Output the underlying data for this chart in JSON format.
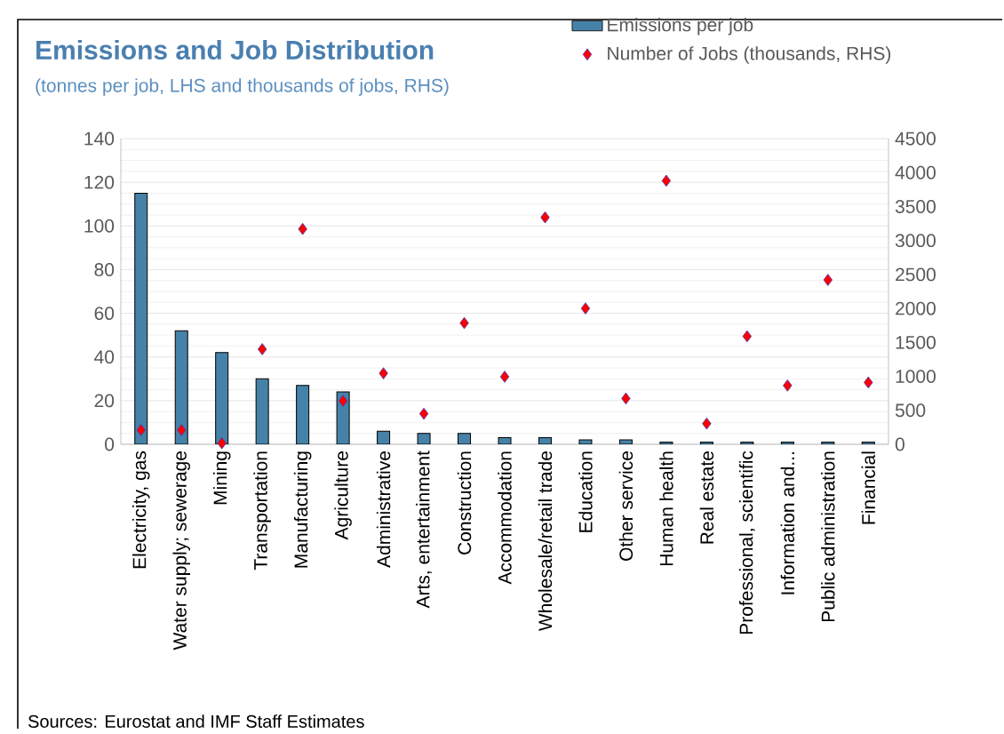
{
  "chart_data": {
    "type": "bar",
    "title": "Emissions and Job Distribution",
    "subtitle": "(tonnes per job, LHS and thousands of jobs, RHS)",
    "categories": [
      "Electricity, gas",
      "Water supply; sewerage",
      "Mining",
      "Transportation",
      "Manufacturing",
      "Agriculture",
      "Administrative",
      "Arts, entertainment",
      "Construction",
      "Accommodation",
      "Wholesale/retail trade",
      "Education",
      "Other service",
      "Human health",
      "Real estate",
      "Professional, scientific",
      "Information and...",
      "Public administration",
      "Financial"
    ],
    "series": [
      {
        "name": "Emissions per job",
        "color": "#4682a8",
        "values": [
          115,
          52,
          42,
          30,
          27,
          24,
          6,
          5,
          5,
          3,
          3,
          2,
          2,
          1,
          1,
          1,
          1,
          1,
          1
        ]
      },
      {
        "name": "Number of Jobs (thousands, RHS)",
        "type": "scatter",
        "axis": "y2",
        "marker": "diamond",
        "color": "#ff0000",
        "values": [
          210,
          210,
          16,
          1400,
          3170,
          640,
          1045,
          450,
          1785,
          995,
          3340,
          2000,
          675,
          3880,
          305,
          1590,
          865,
          2420,
          910
        ]
      }
    ],
    "ylim": [
      0,
      140
    ],
    "yticks": [
      0,
      20,
      40,
      60,
      80,
      100,
      120,
      140
    ],
    "y2lim": [
      0,
      4500
    ],
    "y2ticks": [
      0,
      500,
      1000,
      1500,
      2000,
      2500,
      3000,
      3500,
      4000,
      4500
    ],
    "grid": "y",
    "legend": "top right",
    "annotations": [
      "Sources: Eurostat and IMF Staff Estimates"
    ]
  }
}
